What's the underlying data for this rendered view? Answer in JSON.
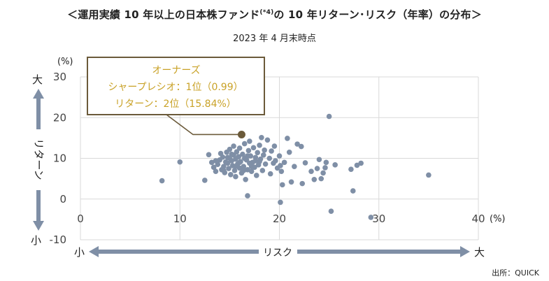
{
  "title": {
    "main": "＜運用実績 10 年以上の日本株ファンド",
    "sup": "(*4)",
    "rest": "の 10 年リターン･リスク（年率）の分布＞"
  },
  "subtitle": "2023 年 4 月末時点",
  "source": "出所：QUICK",
  "callout": {
    "line1": "オーナーズ",
    "line2": "シャープレシオ：1位（0.99）",
    "line3": "リターン：2位（15.84%）",
    "color": "#c9a227",
    "marker_color": "#6b5a3a"
  },
  "labels": {
    "y_big": "大",
    "y_small": "小",
    "y_axis_name": "リターン",
    "x_small": "小",
    "x_big": "大",
    "x_axis_name": "リスク",
    "y_unit": "(%)",
    "x_unit": "(%)"
  },
  "colors": {
    "points": "#7f8fa6",
    "arrow": "#7f8fa6",
    "grid": "#d9d9d9"
  },
  "chart_data": {
    "type": "scatter",
    "xlim": [
      0,
      40
    ],
    "ylim": [
      -10,
      30
    ],
    "xticks": [
      0,
      10,
      20,
      30,
      40
    ],
    "yticks": [
      -10,
      0,
      10,
      20,
      30
    ],
    "grid": true,
    "highlight": {
      "x": 16.2,
      "y": 15.84
    },
    "points": [
      [
        8.2,
        4.5
      ],
      [
        10.0,
        9.1
      ],
      [
        12.5,
        4.6
      ],
      [
        12.9,
        10.9
      ],
      [
        13.2,
        9.0
      ],
      [
        13.4,
        7.8
      ],
      [
        13.6,
        6.8
      ],
      [
        13.8,
        8.5
      ],
      [
        14.0,
        9.6
      ],
      [
        14.1,
        11.2
      ],
      [
        14.2,
        7.2
      ],
      [
        14.3,
        10.3
      ],
      [
        14.4,
        8.0
      ],
      [
        14.5,
        6.5
      ],
      [
        14.6,
        9.1
      ],
      [
        14.7,
        11.5
      ],
      [
        14.8,
        8.8
      ],
      [
        14.9,
        7.5
      ],
      [
        15.0,
        10.0
      ],
      [
        15.0,
        12.2
      ],
      [
        15.1,
        6.0
      ],
      [
        15.2,
        9.4
      ],
      [
        15.3,
        8.2
      ],
      [
        15.4,
        10.8
      ],
      [
        15.4,
        13.0
      ],
      [
        15.5,
        7.0
      ],
      [
        15.6,
        9.8
      ],
      [
        15.6,
        5.5
      ],
      [
        15.7,
        11.6
      ],
      [
        15.8,
        8.6
      ],
      [
        15.9,
        10.4
      ],
      [
        16.0,
        7.6
      ],
      [
        16.0,
        12.5
      ],
      [
        16.1,
        9.2
      ],
      [
        16.2,
        6.4
      ],
      [
        16.3,
        11.0
      ],
      [
        16.4,
        8.0
      ],
      [
        16.5,
        10.0
      ],
      [
        16.5,
        13.6
      ],
      [
        16.6,
        4.8
      ],
      [
        16.7,
        9.6
      ],
      [
        16.8,
        7.2
      ],
      [
        16.9,
        11.9
      ],
      [
        17.0,
        8.8
      ],
      [
        17.0,
        14.2
      ],
      [
        17.1,
        10.6
      ],
      [
        17.2,
        6.8
      ],
      [
        17.3,
        9.0
      ],
      [
        17.4,
        12.6
      ],
      [
        17.5,
        7.8
      ],
      [
        17.6,
        10.2
      ],
      [
        17.7,
        5.8
      ],
      [
        17.8,
        11.4
      ],
      [
        17.9,
        8.4
      ],
      [
        18.0,
        13.2
      ],
      [
        18.1,
        9.8
      ],
      [
        18.2,
        15.1
      ],
      [
        18.3,
        7.0
      ],
      [
        18.4,
        10.8
      ],
      [
        18.5,
        12.0
      ],
      [
        18.6,
        8.6
      ],
      [
        18.8,
        14.5
      ],
      [
        19.0,
        10.0
      ],
      [
        19.1,
        6.2
      ],
      [
        19.2,
        11.8
      ],
      [
        19.4,
        8.8
      ],
      [
        19.5,
        13.0
      ],
      [
        19.6,
        9.4
      ],
      [
        19.8,
        7.6
      ],
      [
        20.0,
        10.6
      ],
      [
        20.1,
        8.2
      ],
      [
        20.2,
        6.8
      ],
      [
        20.3,
        3.5
      ],
      [
        20.5,
        9.0
      ],
      [
        20.8,
        14.9
      ],
      [
        21.0,
        11.5
      ],
      [
        21.2,
        4.2
      ],
      [
        21.5,
        8.0
      ],
      [
        21.8,
        13.5
      ],
      [
        22.2,
        12.9
      ],
      [
        22.3,
        3.8
      ],
      [
        22.6,
        8.9
      ],
      [
        23.2,
        6.8
      ],
      [
        23.5,
        4.8
      ],
      [
        23.8,
        7.5
      ],
      [
        24.0,
        9.7
      ],
      [
        24.2,
        5.0
      ],
      [
        24.4,
        6.4
      ],
      [
        24.6,
        7.7
      ],
      [
        24.7,
        9.0
      ],
      [
        25.0,
        20.3
      ],
      [
        25.2,
        -3.0
      ],
      [
        25.6,
        8.4
      ],
      [
        27.2,
        7.3
      ],
      [
        27.4,
        2.0
      ],
      [
        27.8,
        8.3
      ],
      [
        28.2,
        8.8
      ],
      [
        29.2,
        -4.5
      ],
      [
        35.0,
        5.9
      ],
      [
        16.8,
        0.8
      ],
      [
        20.1,
        -0.8
      ],
      [
        13.6,
        9.4
      ],
      [
        14.4,
        7.0
      ],
      [
        15.2,
        11.0
      ],
      [
        16.0,
        9.0
      ],
      [
        17.2,
        8.0
      ],
      [
        18.0,
        9.2
      ],
      [
        16.8,
        10.6
      ],
      [
        15.6,
        8.0
      ],
      [
        17.6,
        9.4
      ],
      [
        14.8,
        10.2
      ],
      [
        16.4,
        7.0
      ]
    ]
  }
}
